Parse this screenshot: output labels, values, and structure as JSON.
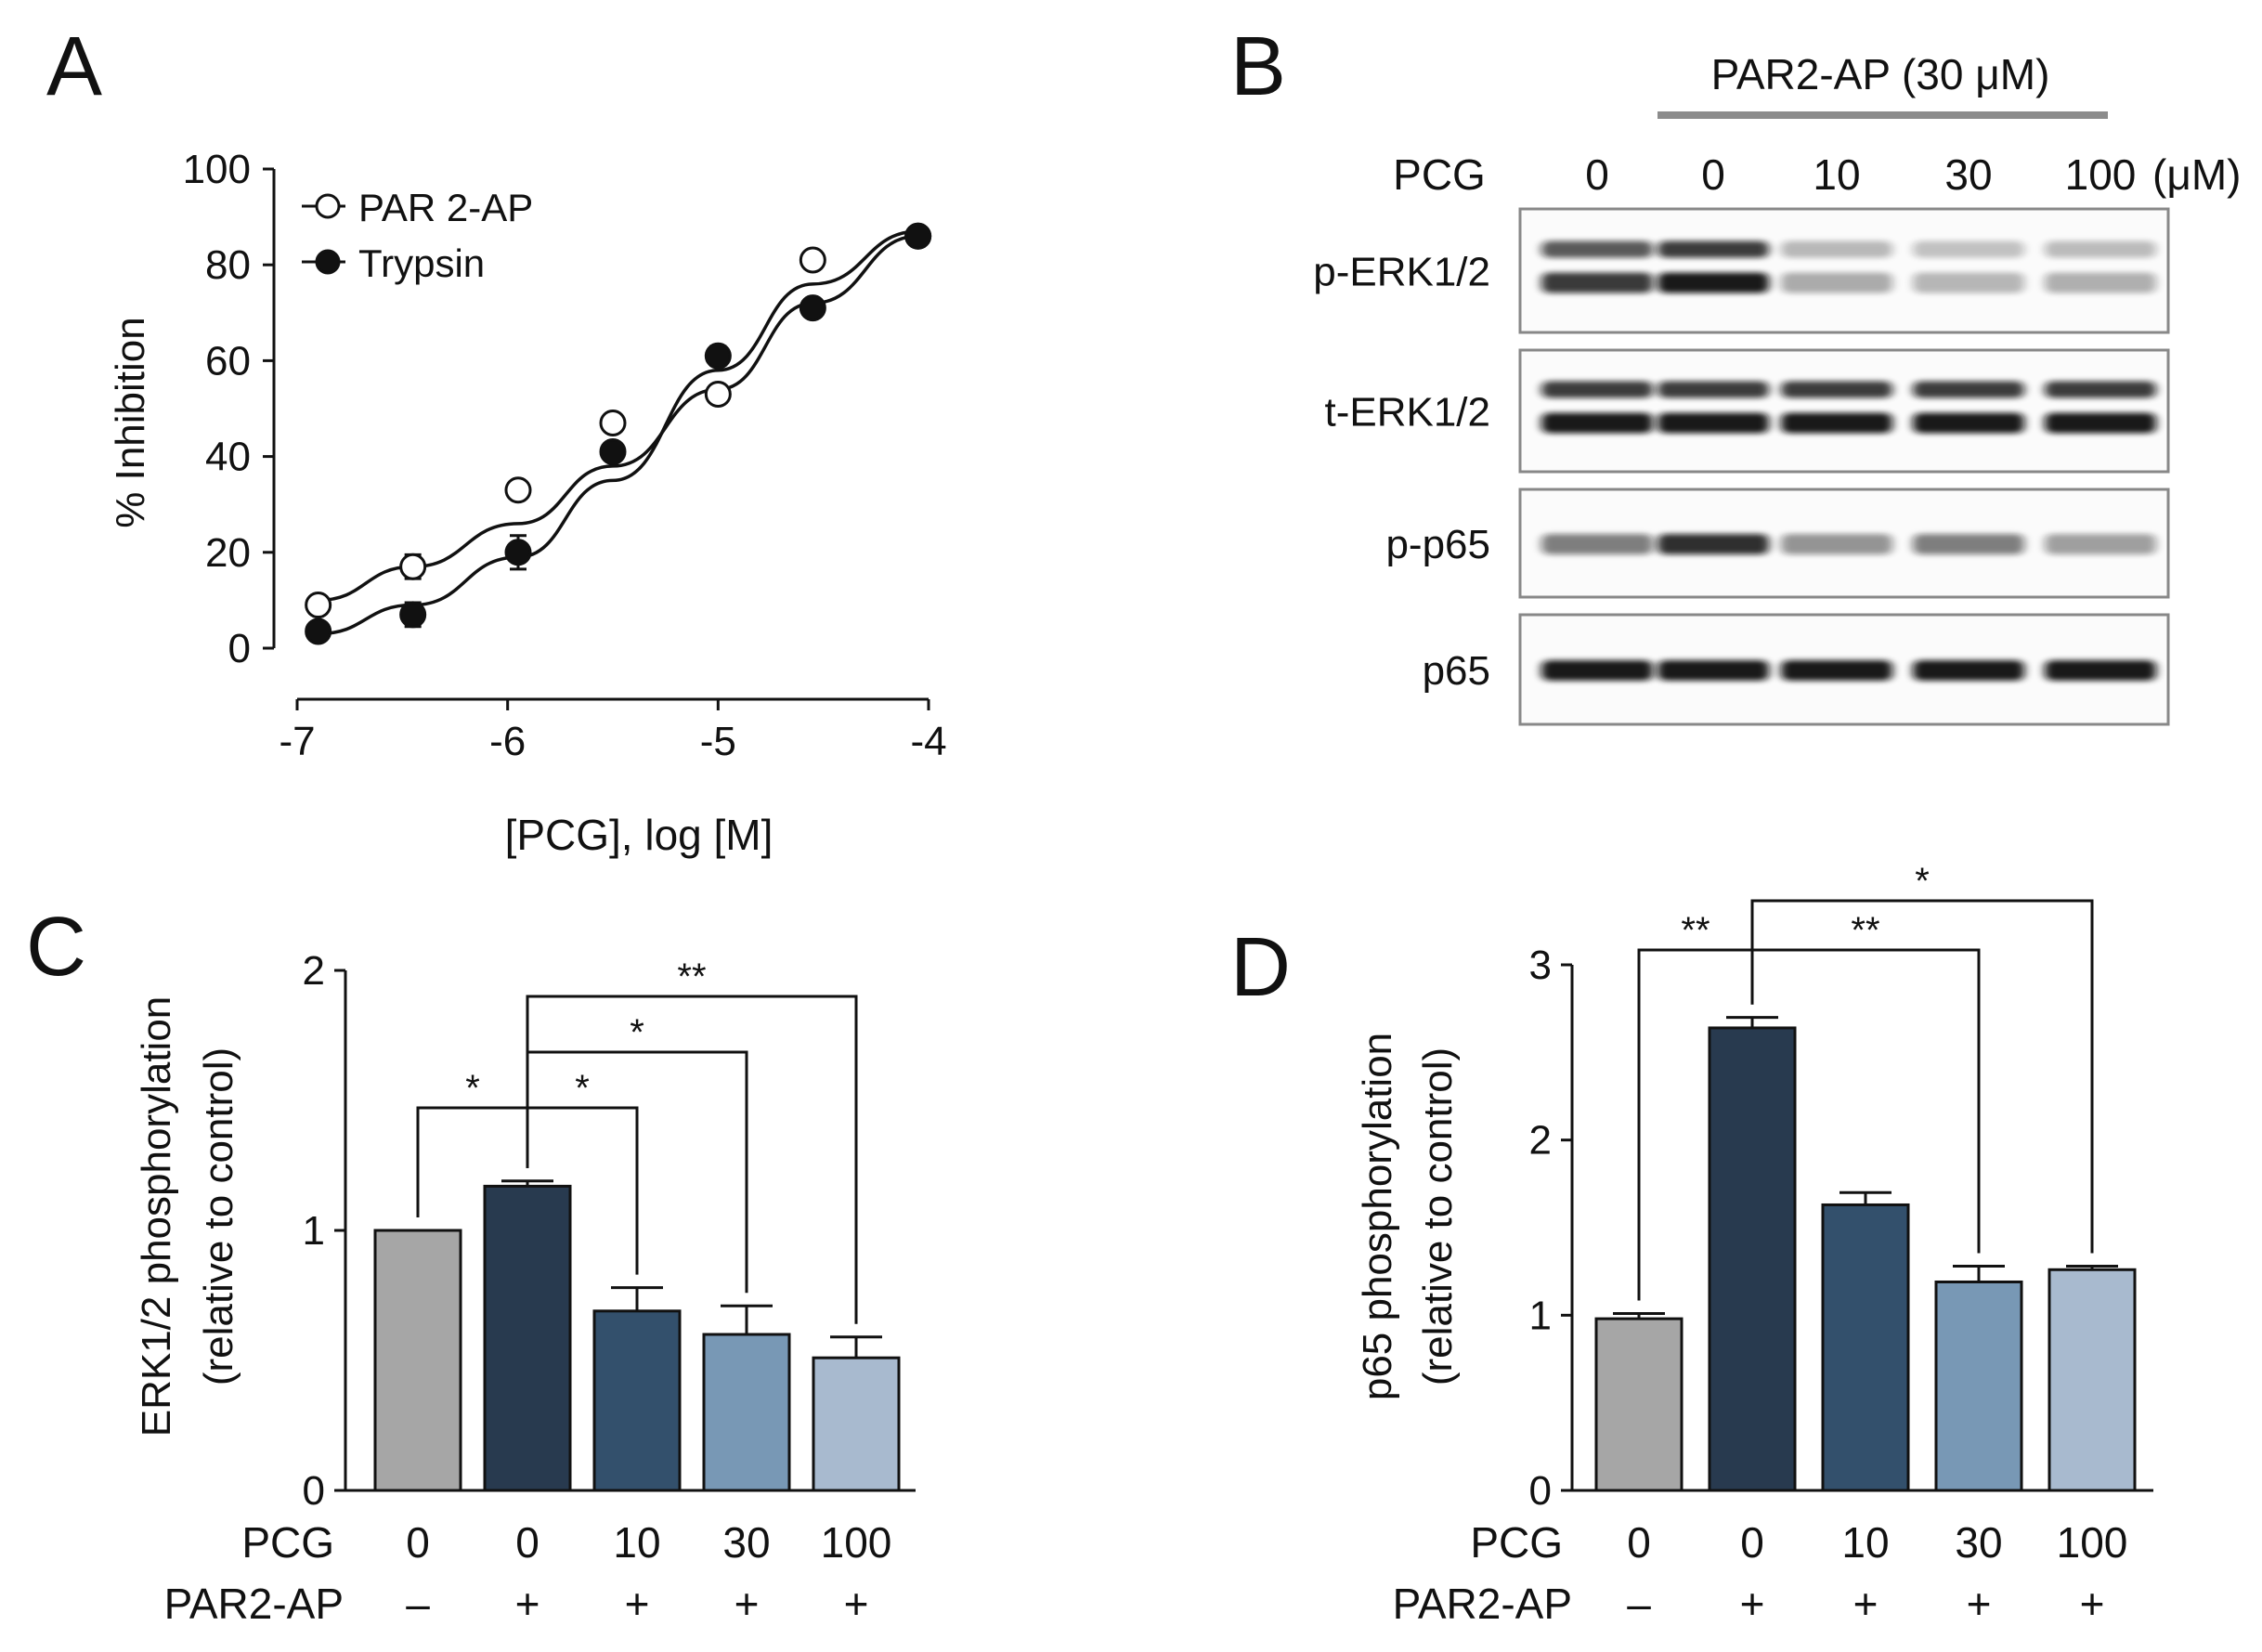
{
  "panel_letters": {
    "a": "A",
    "b": "B",
    "c": "C",
    "d": "D"
  },
  "chart_data": [
    {
      "panel": "A",
      "type": "scatter",
      "xlabel": "[PCG], log [M]",
      "ylabel": "% Inhibition",
      "xlim": [
        -7,
        -4
      ],
      "ylim": [
        0,
        100
      ],
      "xticks": [
        -7,
        -6,
        -5,
        -4
      ],
      "xtick_labels": [
        "-7",
        "-6",
        "-5",
        "-4"
      ],
      "yticks": [
        0,
        20,
        40,
        60,
        80,
        100
      ],
      "ytick_labels": [
        "0",
        "20",
        "40",
        "60",
        "80",
        "100"
      ],
      "legend_position": "top-left",
      "grid": false,
      "x": [
        -6.9,
        -6.45,
        -5.95,
        -5.5,
        -5.0,
        -4.55,
        -4.05
      ],
      "series": [
        {
          "name": "PAR 2-AP",
          "marker": "open-circle",
          "y": [
            9,
            17,
            33,
            47,
            53,
            81,
            86
          ],
          "err": [
            0.6,
            2.5,
            0.8,
            0.6,
            0.6,
            0.6,
            0.6
          ],
          "fit": [
            10,
            17,
            26,
            38,
            54,
            72,
            86
          ]
        },
        {
          "name": "Trypsin",
          "marker": "filled-circle",
          "y": [
            3.5,
            7,
            20,
            41,
            61,
            71,
            86
          ],
          "err": [
            0.6,
            2.5,
            3.5,
            0.6,
            2,
            0.6,
            0.6
          ],
          "fit": [
            3,
            9,
            19,
            35,
            58,
            76,
            87
          ]
        }
      ]
    },
    {
      "panel": "C",
      "type": "bar",
      "ylabel_lines": [
        "ERK1/2 phosphorylation",
        "(relative to control)"
      ],
      "ylim": [
        0,
        2
      ],
      "yticks": [
        0,
        1,
        2
      ],
      "ytick_labels": [
        "0",
        "1",
        "2"
      ],
      "row_labels": [
        "PCG",
        "PAR2-AP"
      ],
      "categories_pcg": [
        "0",
        "0",
        "10",
        "30",
        "100"
      ],
      "categories_par2": [
        "–",
        "+",
        "+",
        "+",
        "+"
      ],
      "values": [
        1.0,
        1.17,
        0.69,
        0.6,
        0.51
      ],
      "errors": [
        0.0,
        0.02,
        0.09,
        0.11,
        0.08
      ],
      "colors": [
        "#a6a6a6",
        "#283a4f",
        "#33506c",
        "#7898b5",
        "#a8bacf"
      ],
      "significance": [
        {
          "from": 0,
          "to": 1,
          "label": "*"
        },
        {
          "from": 1,
          "to": 2,
          "label": "*"
        },
        {
          "from": 1,
          "to": 3,
          "label": "*"
        },
        {
          "from": 1,
          "to": 4,
          "label": "**"
        }
      ]
    },
    {
      "panel": "D",
      "type": "bar",
      "ylabel_lines": [
        "p65 phosphorylation",
        "(relative to control)"
      ],
      "ylim": [
        0,
        3
      ],
      "yticks": [
        0,
        1,
        2,
        3
      ],
      "ytick_labels": [
        "0",
        "1",
        "2",
        "3"
      ],
      "row_labels": [
        "PCG",
        "PAR2-AP"
      ],
      "categories_pcg": [
        "0",
        "0",
        "10",
        "30",
        "100"
      ],
      "categories_par2": [
        "–",
        "+",
        "+",
        "+",
        "+"
      ],
      "values": [
        0.98,
        2.64,
        1.63,
        1.19,
        1.26
      ],
      "errors": [
        0.03,
        0.06,
        0.07,
        0.09,
        0.02
      ],
      "colors": [
        "#a6a6a6",
        "#283a4f",
        "#33506c",
        "#7898b5",
        "#a8bacf"
      ],
      "significance": [
        {
          "from": 0,
          "to": 1,
          "label": "**"
        },
        {
          "from": 1,
          "to": 3,
          "label": "**"
        },
        {
          "from": 1,
          "to": 4,
          "label": "*"
        }
      ]
    }
  ],
  "western_blot": {
    "treatment_label": "PAR2-AP (30 μM)",
    "pcg_label": "PCG",
    "doses": [
      "0",
      "0",
      "10",
      "30",
      "100"
    ],
    "unit": "(μM)",
    "rows": [
      {
        "label": "p-ERK1/2",
        "intensity": [
          0.85,
          1.0,
          0.35,
          0.3,
          0.33
        ],
        "double_band": true
      },
      {
        "label": "t-ERK1/2",
        "intensity": [
          1.0,
          1.0,
          1.0,
          1.0,
          1.0
        ],
        "double_band": true
      },
      {
        "label": "p-p65",
        "intensity": [
          0.55,
          0.9,
          0.45,
          0.55,
          0.4
        ],
        "double_band": false
      },
      {
        "label": "p65",
        "intensity": [
          1.0,
          1.0,
          1.0,
          1.0,
          1.0
        ],
        "double_band": false
      }
    ]
  }
}
